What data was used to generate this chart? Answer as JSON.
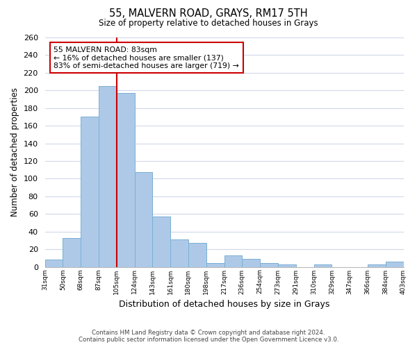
{
  "title": "55, MALVERN ROAD, GRAYS, RM17 5TH",
  "subtitle": "Size of property relative to detached houses in Grays",
  "xlabel": "Distribution of detached houses by size in Grays",
  "ylabel": "Number of detached properties",
  "bar_labels": [
    "31sqm",
    "50sqm",
    "68sqm",
    "87sqm",
    "105sqm",
    "124sqm",
    "143sqm",
    "161sqm",
    "180sqm",
    "198sqm",
    "217sqm",
    "236sqm",
    "254sqm",
    "273sqm",
    "291sqm",
    "310sqm",
    "329sqm",
    "347sqm",
    "366sqm",
    "384sqm",
    "403sqm"
  ],
  "bar_values": [
    8,
    33,
    170,
    205,
    197,
    107,
    57,
    31,
    27,
    4,
    13,
    9,
    4,
    3,
    0,
    3,
    0,
    0,
    3,
    6
  ],
  "bar_color": "#aec9e8",
  "bar_edge_color": "#7aafd4",
  "vline_color": "#cc0000",
  "vline_bar_index": 3,
  "annotation_title": "55 MALVERN ROAD: 83sqm",
  "annotation_line1": "← 16% of detached houses are smaller (137)",
  "annotation_line2": "83% of semi-detached houses are larger (719) →",
  "annotation_box_color": "#ffffff",
  "annotation_box_edge": "#cc0000",
  "ylim": [
    0,
    260
  ],
  "yticks": [
    0,
    20,
    40,
    60,
    80,
    100,
    120,
    140,
    160,
    180,
    200,
    220,
    240,
    260
  ],
  "footnote1": "Contains HM Land Registry data © Crown copyright and database right 2024.",
  "footnote2": "Contains public sector information licensed under the Open Government Licence v3.0.",
  "bg_color": "#ffffff",
  "grid_color": "#d0d8e8"
}
